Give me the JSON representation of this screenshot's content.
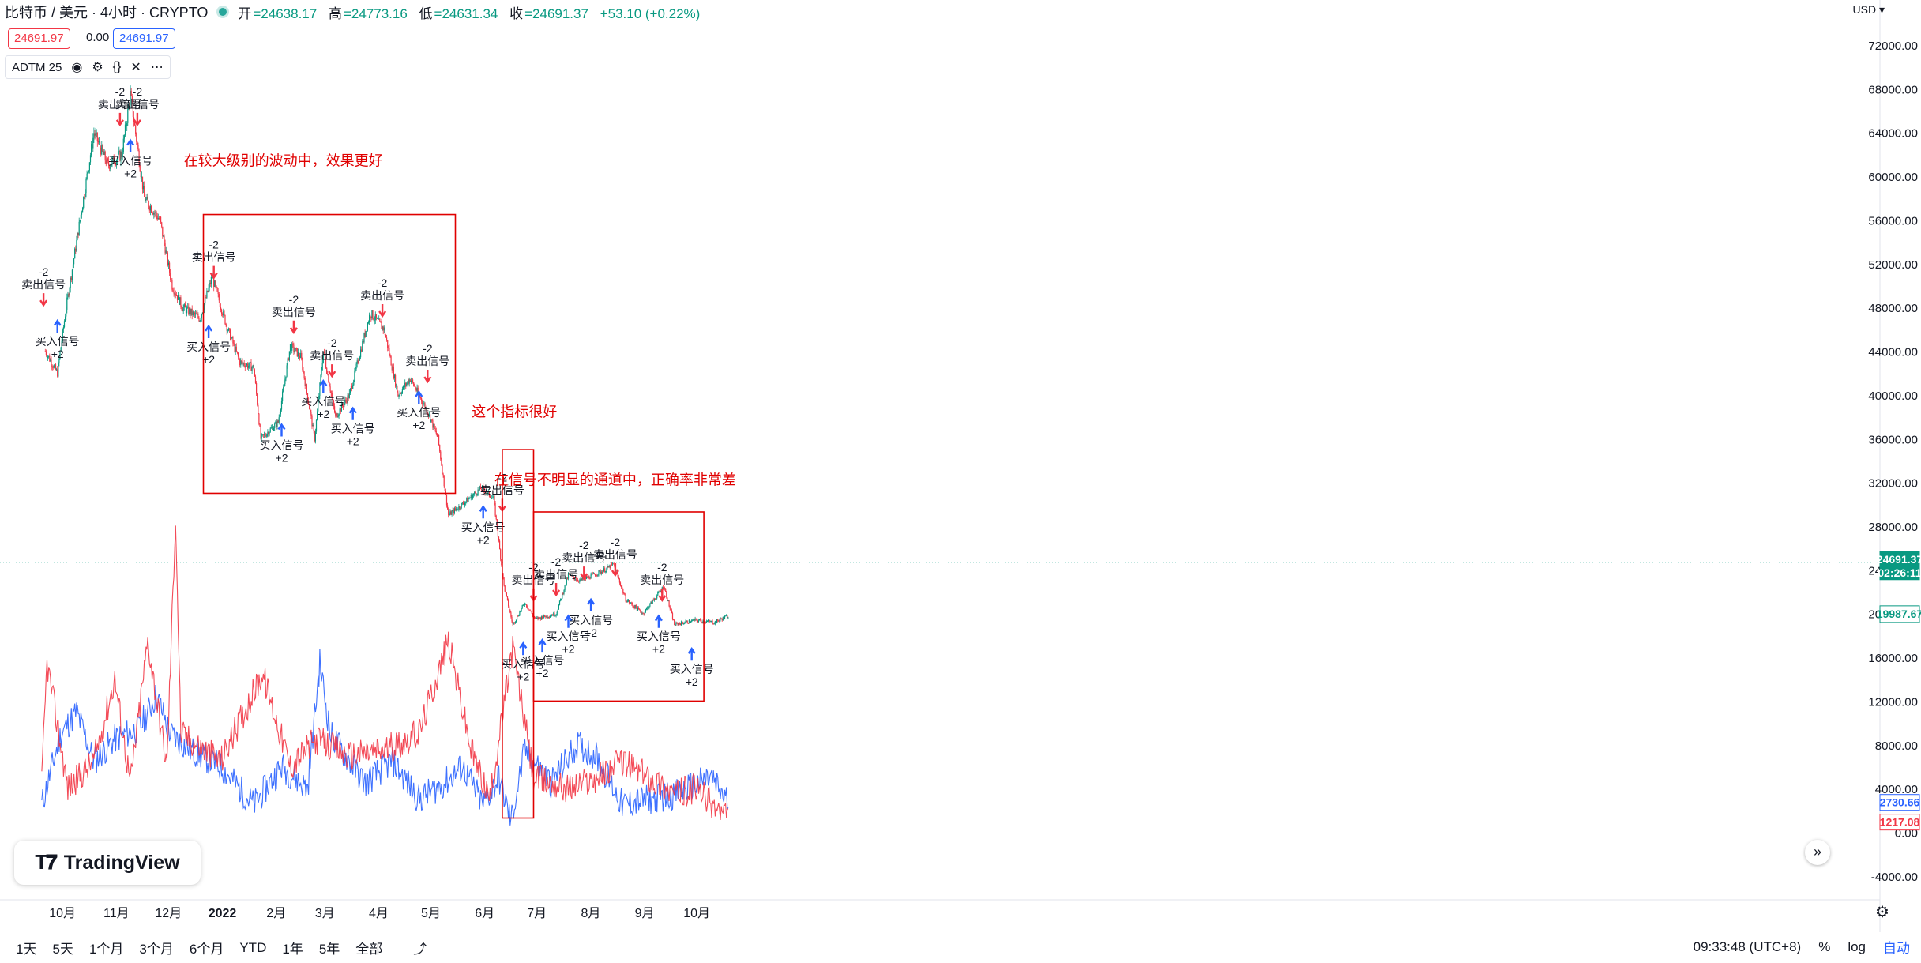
{
  "header": {
    "symbol": "比特币 / 美元 · 4小时 · CRYPTO",
    "open_label": "开",
    "open": "=24638.17",
    "high_label": "高",
    "high": "=24773.16",
    "low_label": "低",
    "low": "=24631.34",
    "close_label": "收",
    "close": "=24691.37",
    "change": "+53.10 (+0.22%)",
    "sell_price": "24691.97",
    "spread": "0.00",
    "buy_price": "24691.97"
  },
  "indicator": {
    "name": "ADTM 25",
    "icons": [
      "eye-icon",
      "gear-icon",
      "braces-icon",
      "close-icon",
      "more-icon"
    ]
  },
  "currency": "USD",
  "logo_text": "TradingView",
  "colors": {
    "up": "#089981",
    "down": "#f23645",
    "buy": "#2962ff",
    "sell": "#f23645",
    "annotation": "#e00000"
  },
  "toolbar": {
    "ranges": [
      "1天",
      "5天",
      "1个月",
      "3个月",
      "6个月",
      "YTD",
      "1年",
      "5年",
      "全部"
    ],
    "time": "09:33:48 (UTC+8)",
    "percent": "%",
    "log": "log",
    "auto": "自动"
  },
  "chart_data": [
    {
      "type": "candlestick",
      "title": "比特币 / 美元 · 4小时 · CRYPTO",
      "y_axis_ticks": [
        "72000.00",
        "68000.00",
        "64000.00",
        "60000.00",
        "56000.00",
        "52000.00",
        "48000.00",
        "44000.00",
        "40000.00",
        "36000.00",
        "32000.00",
        "28000.00",
        "24000.00",
        "20000.00",
        "16000.00",
        "12000.00",
        "8000.00",
        "4000.00",
        "0.00",
        "-4000.00"
      ],
      "x_axis_ticks": [
        "10月",
        "11月",
        "12月",
        "2022",
        "2月",
        "3月",
        "4月",
        "5月",
        "6月",
        "7月",
        "8月",
        "9月",
        "10月"
      ],
      "price_path": [
        {
          "date": "2021-09-22",
          "price": 44000
        },
        {
          "date": "2021-09-29",
          "price": 42000
        },
        {
          "date": "2021-10-04",
          "price": 48000
        },
        {
          "date": "2021-10-12",
          "price": 56000
        },
        {
          "date": "2021-10-20",
          "price": 64000
        },
        {
          "date": "2021-10-28",
          "price": 61000
        },
        {
          "date": "2021-11-05",
          "price": 62000
        },
        {
          "date": "2021-11-10",
          "price": 67500
        },
        {
          "date": "2021-11-18",
          "price": 58000
        },
        {
          "date": "2021-11-27",
          "price": 56000
        },
        {
          "date": "2021-12-04",
          "price": 50000
        },
        {
          "date": "2021-12-10",
          "price": 48000
        },
        {
          "date": "2021-12-20",
          "price": 47000
        },
        {
          "date": "2021-12-27",
          "price": 50800
        },
        {
          "date": "2022-01-05",
          "price": 46000
        },
        {
          "date": "2022-01-12",
          "price": 43000
        },
        {
          "date": "2022-01-20",
          "price": 42500
        },
        {
          "date": "2022-01-24",
          "price": 36000
        },
        {
          "date": "2022-02-03",
          "price": 37500
        },
        {
          "date": "2022-02-10",
          "price": 44500
        },
        {
          "date": "2022-02-16",
          "price": 43500
        },
        {
          "date": "2022-02-24",
          "price": 36000
        },
        {
          "date": "2022-03-01",
          "price": 44000
        },
        {
          "date": "2022-03-08",
          "price": 38000
        },
        {
          "date": "2022-03-16",
          "price": 40000
        },
        {
          "date": "2022-03-28",
          "price": 47500
        },
        {
          "date": "2022-04-05",
          "price": 46000
        },
        {
          "date": "2022-04-13",
          "price": 40000
        },
        {
          "date": "2022-04-20",
          "price": 41500
        },
        {
          "date": "2022-04-30",
          "price": 38500
        },
        {
          "date": "2022-05-06",
          "price": 36000
        },
        {
          "date": "2022-05-12",
          "price": 29000
        },
        {
          "date": "2022-05-20",
          "price": 30000
        },
        {
          "date": "2022-05-31",
          "price": 31500
        },
        {
          "date": "2022-06-07",
          "price": 30500
        },
        {
          "date": "2022-06-13",
          "price": 22500
        },
        {
          "date": "2022-06-18",
          "price": 19000
        },
        {
          "date": "2022-06-25",
          "price": 21000
        },
        {
          "date": "2022-07-01",
          "price": 19500
        },
        {
          "date": "2022-07-13",
          "price": 20000
        },
        {
          "date": "2022-07-20",
          "price": 23500
        },
        {
          "date": "2022-07-27",
          "price": 23000
        },
        {
          "date": "2022-08-10",
          "price": 24000
        },
        {
          "date": "2022-08-15",
          "price": 24500
        },
        {
          "date": "2022-08-22",
          "price": 21300
        },
        {
          "date": "2022-09-01",
          "price": 20000
        },
        {
          "date": "2022-09-13",
          "price": 22500
        },
        {
          "date": "2022-09-19",
          "price": 19000
        },
        {
          "date": "2022-10-01",
          "price": 19400
        },
        {
          "date": "2022-10-12",
          "price": 19200
        },
        {
          "date": "2022-10-20",
          "price": 19800
        }
      ],
      "markers": [
        {
          "kind": "sell",
          "date": "2021-09-21",
          "price": 48000,
          "label": "卖出信号",
          "value": "-2"
        },
        {
          "kind": "buy",
          "date": "2021-09-29",
          "price": 47000,
          "label": "买入信号",
          "value": "+2"
        },
        {
          "kind": "sell",
          "date": "2021-11-04",
          "price": 64500,
          "label": "卖出信号",
          "value": "-2"
        },
        {
          "kind": "buy",
          "date": "2021-11-10",
          "price": 63500,
          "label": "买入信号",
          "value": "+2"
        },
        {
          "kind": "sell",
          "date": "2021-11-14",
          "price": 64500,
          "label": "卖出信号",
          "value": "-2"
        },
        {
          "kind": "sell",
          "date": "2021-12-28",
          "price": 50500,
          "label": "卖出信号",
          "value": "-2"
        },
        {
          "kind": "buy",
          "date": "2021-12-25",
          "price": 46500,
          "label": "买入信号",
          "value": "+2"
        },
        {
          "kind": "sell",
          "date": "2022-02-12",
          "price": 45500,
          "label": "卖出信号",
          "value": "-2"
        },
        {
          "kind": "buy",
          "date": "2022-02-05",
          "price": 37500,
          "label": "买入信号",
          "value": "+2"
        },
        {
          "kind": "buy",
          "date": "2022-03-01",
          "price": 41500,
          "label": "买入信号",
          "value": "+2"
        },
        {
          "kind": "sell",
          "date": "2022-03-06",
          "price": 41500,
          "label": "卖出信号",
          "value": "-2"
        },
        {
          "kind": "buy",
          "date": "2022-03-18",
          "price": 39000,
          "label": "买入信号",
          "value": "+2"
        },
        {
          "kind": "sell",
          "date": "2022-04-04",
          "price": 47000,
          "label": "卖出信号",
          "value": "-2"
        },
        {
          "kind": "buy",
          "date": "2022-04-25",
          "price": 40500,
          "label": "买入信号",
          "value": "+2"
        },
        {
          "kind": "sell",
          "date": "2022-04-30",
          "price": 41000,
          "label": "卖出信号",
          "value": "-2"
        },
        {
          "kind": "buy",
          "date": "2022-06-01",
          "price": 30000,
          "label": "买入信号",
          "value": "+2"
        },
        {
          "kind": "sell",
          "date": "2022-06-12",
          "price": 29200,
          "label": "卖出信号",
          "value": "-2"
        },
        {
          "kind": "buy",
          "date": "2022-06-24",
          "price": 17500,
          "label": "买入信号",
          "value": "+2"
        },
        {
          "kind": "sell",
          "date": "2022-06-30",
          "price": 21000,
          "label": "卖出信号",
          "value": "-2"
        },
        {
          "kind": "buy",
          "date": "2022-07-05",
          "price": 17800,
          "label": "买入信号",
          "value": "+2"
        },
        {
          "kind": "sell",
          "date": "2022-07-13",
          "price": 21500,
          "label": "卖出信号",
          "value": "-2"
        },
        {
          "kind": "buy",
          "date": "2022-07-20",
          "price": 20000,
          "label": "买入信号",
          "value": "+2"
        },
        {
          "kind": "sell",
          "date": "2022-07-29",
          "price": 23000,
          "label": "卖出信号",
          "value": "-2"
        },
        {
          "kind": "buy",
          "date": "2022-08-02",
          "price": 21500,
          "label": "买入信号",
          "value": "+2"
        },
        {
          "kind": "sell",
          "date": "2022-08-16",
          "price": 23300,
          "label": "卖出信号",
          "value": "-2"
        },
        {
          "kind": "buy",
          "date": "2022-09-10",
          "price": 20000,
          "label": "买入信号",
          "value": "+2"
        },
        {
          "kind": "sell",
          "date": "2022-09-12",
          "price": 21000,
          "label": "卖出信号",
          "value": "-2"
        },
        {
          "kind": "buy",
          "date": "2022-09-29",
          "price": 17000,
          "label": "买入信号",
          "value": "+2"
        }
      ],
      "current_price": {
        "value": "24691.37",
        "countdown": "02:26:11"
      },
      "indicator_last": {
        "label": "19987.67"
      }
    },
    {
      "type": "line",
      "title": "ADTM 25",
      "series": [
        {
          "color": "#2962ff",
          "last": "2730.66",
          "points": [
            {
              "date": "2021-09-20",
              "v": 2500
            },
            {
              "date": "2021-10-01",
              "v": 9000
            },
            {
              "date": "2021-10-10",
              "v": 11000
            },
            {
              "date": "2021-10-20",
              "v": 6500
            },
            {
              "date": "2021-11-01",
              "v": 8500
            },
            {
              "date": "2021-11-15",
              "v": 9500
            },
            {
              "date": "2021-11-25",
              "v": 12500
            },
            {
              "date": "2021-12-03",
              "v": 9000
            },
            {
              "date": "2021-12-15",
              "v": 7500
            },
            {
              "date": "2022-01-01",
              "v": 6000
            },
            {
              "date": "2022-01-20",
              "v": 2500
            },
            {
              "date": "2022-02-05",
              "v": 6000
            },
            {
              "date": "2022-02-20",
              "v": 4000
            },
            {
              "date": "2022-02-27",
              "v": 15500
            },
            {
              "date": "2022-03-05",
              "v": 9000
            },
            {
              "date": "2022-03-25",
              "v": 4500
            },
            {
              "date": "2022-04-10",
              "v": 6500
            },
            {
              "date": "2022-04-25",
              "v": 3000
            },
            {
              "date": "2022-05-10",
              "v": 4500
            },
            {
              "date": "2022-05-20",
              "v": 6000
            },
            {
              "date": "2022-06-01",
              "v": 2500
            },
            {
              "date": "2022-06-10",
              "v": 5000
            },
            {
              "date": "2022-06-17",
              "v": 1000
            },
            {
              "date": "2022-06-25",
              "v": 7500
            },
            {
              "date": "2022-07-10",
              "v": 4500
            },
            {
              "date": "2022-07-25",
              "v": 8000
            },
            {
              "date": "2022-08-05",
              "v": 7000
            },
            {
              "date": "2022-08-20",
              "v": 2500
            },
            {
              "date": "2022-09-05",
              "v": 3000
            },
            {
              "date": "2022-09-20",
              "v": 3500
            },
            {
              "date": "2022-10-10",
              "v": 5000
            },
            {
              "date": "2022-10-20",
              "v": 2730
            }
          ]
        },
        {
          "color": "#f23645",
          "last": "1217.08",
          "points": [
            {
              "date": "2021-09-20",
              "v": 4500
            },
            {
              "date": "2021-09-23",
              "v": 15500
            },
            {
              "date": "2021-10-05",
              "v": 4000
            },
            {
              "date": "2021-10-20",
              "v": 6500
            },
            {
              "date": "2021-11-01",
              "v": 14000
            },
            {
              "date": "2021-11-10",
              "v": 4500
            },
            {
              "date": "2021-11-20",
              "v": 17500
            },
            {
              "date": "2021-12-01",
              "v": 6000
            },
            {
              "date": "2021-12-06",
              "v": 29000
            },
            {
              "date": "2021-12-09",
              "v": 9000
            },
            {
              "date": "2022-01-01",
              "v": 6500
            },
            {
              "date": "2022-01-25",
              "v": 14500
            },
            {
              "date": "2022-02-10",
              "v": 6000
            },
            {
              "date": "2022-02-25",
              "v": 8500
            },
            {
              "date": "2022-03-15",
              "v": 7000
            },
            {
              "date": "2022-04-05",
              "v": 7500
            },
            {
              "date": "2022-04-25",
              "v": 9000
            },
            {
              "date": "2022-05-12",
              "v": 17500
            },
            {
              "date": "2022-05-25",
              "v": 7500
            },
            {
              "date": "2022-06-05",
              "v": 3000
            },
            {
              "date": "2022-06-18",
              "v": 17000
            },
            {
              "date": "2022-06-30",
              "v": 5000
            },
            {
              "date": "2022-07-20",
              "v": 4000
            },
            {
              "date": "2022-08-05",
              "v": 5000
            },
            {
              "date": "2022-08-20",
              "v": 6500
            },
            {
              "date": "2022-09-05",
              "v": 5000
            },
            {
              "date": "2022-09-20",
              "v": 3500
            },
            {
              "date": "2022-10-01",
              "v": 4000
            },
            {
              "date": "2022-10-20",
              "v": 1217
            }
          ]
        }
      ]
    }
  ],
  "annotations": {
    "big_wave": "在较大级别的波动中，效果更好",
    "good_indicator": "这个指标很好",
    "channel": "在信号不明显的通道中，正确率非常差"
  }
}
